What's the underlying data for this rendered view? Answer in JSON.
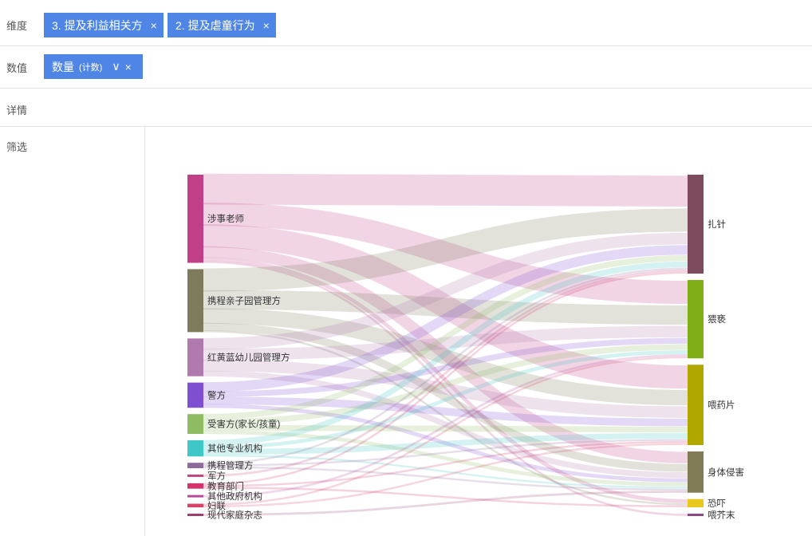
{
  "filters": {
    "dimension_label": "维度",
    "value_label": "数值",
    "details_label": "详情",
    "filter_label": "筛选",
    "dimensions": [
      {
        "label": "3. 提及利益相关方"
      },
      {
        "label": "2. 提及虐童行为"
      }
    ],
    "value_pill": {
      "label": "数量",
      "agg": "(计数)"
    }
  },
  "chart_data": {
    "type": "sankey",
    "sources": [
      {
        "name": "涉事老师",
        "color": "#c13f87"
      },
      {
        "name": "携程亲子园管理方",
        "color": "#7d7b5b"
      },
      {
        "name": "红黄蓝幼儿园管理方",
        "color": "#b07aae"
      },
      {
        "name": "警方",
        "color": "#7f4fd1"
      },
      {
        "name": "受害方(家长/孩童)",
        "color": "#8fbb62"
      },
      {
        "name": "其他专业机构",
        "color": "#3fc6c6"
      },
      {
        "name": "携程管理方",
        "color": "#8c6a9b"
      },
      {
        "name": "军方",
        "color": "#c2457c"
      },
      {
        "name": "教育部门",
        "color": "#d2336b"
      },
      {
        "name": "其他政府机构",
        "color": "#b54c9a"
      },
      {
        "name": "妇联",
        "color": "#d84267"
      },
      {
        "name": "现代家庭杂志",
        "color": "#9a3f6e"
      }
    ],
    "targets": [
      {
        "name": "扎针",
        "color": "#7e4a5e"
      },
      {
        "name": "猥亵",
        "color": "#7fae16"
      },
      {
        "name": "喂药片",
        "color": "#b0a800"
      },
      {
        "name": "身体侵害",
        "color": "#807b55"
      },
      {
        "name": "恐吓",
        "color": "#e8c81c"
      },
      {
        "name": "喂芥末",
        "color": "#8c4a8a"
      }
    ],
    "links": [
      {
        "s": 0,
        "t": 0,
        "v": 16
      },
      {
        "s": 0,
        "t": 1,
        "v": 12
      },
      {
        "s": 0,
        "t": 2,
        "v": 12
      },
      {
        "s": 0,
        "t": 3,
        "v": 6
      },
      {
        "s": 0,
        "t": 4,
        "v": 2
      },
      {
        "s": 0,
        "t": 5,
        "v": 1
      },
      {
        "s": 1,
        "t": 0,
        "v": 12
      },
      {
        "s": 1,
        "t": 1,
        "v": 10
      },
      {
        "s": 1,
        "t": 2,
        "v": 8
      },
      {
        "s": 1,
        "t": 3,
        "v": 4
      },
      {
        "s": 1,
        "t": 4,
        "v": 1
      },
      {
        "s": 2,
        "t": 0,
        "v": 6
      },
      {
        "s": 2,
        "t": 1,
        "v": 6
      },
      {
        "s": 2,
        "t": 2,
        "v": 6
      },
      {
        "s": 2,
        "t": 3,
        "v": 3
      },
      {
        "s": 3,
        "t": 0,
        "v": 5
      },
      {
        "s": 3,
        "t": 1,
        "v": 3
      },
      {
        "s": 3,
        "t": 2,
        "v": 4
      },
      {
        "s": 3,
        "t": 3,
        "v": 2
      },
      {
        "s": 4,
        "t": 0,
        "v": 3
      },
      {
        "s": 4,
        "t": 1,
        "v": 3
      },
      {
        "s": 4,
        "t": 2,
        "v": 3
      },
      {
        "s": 4,
        "t": 3,
        "v": 2
      },
      {
        "s": 5,
        "t": 0,
        "v": 3
      },
      {
        "s": 5,
        "t": 1,
        "v": 2
      },
      {
        "s": 5,
        "t": 2,
        "v": 3
      },
      {
        "s": 5,
        "t": 3,
        "v": 1
      },
      {
        "s": 6,
        "t": 0,
        "v": 1
      },
      {
        "s": 6,
        "t": 2,
        "v": 1
      },
      {
        "s": 6,
        "t": 3,
        "v": 1
      },
      {
        "s": 7,
        "t": 0,
        "v": 1
      },
      {
        "s": 8,
        "t": 0,
        "v": 1
      },
      {
        "s": 8,
        "t": 2,
        "v": 1
      },
      {
        "s": 8,
        "t": 4,
        "v": 1
      },
      {
        "s": 9,
        "t": 1,
        "v": 1
      },
      {
        "s": 10,
        "t": 1,
        "v": 1
      },
      {
        "s": 10,
        "t": 2,
        "v": 1
      },
      {
        "s": 11,
        "t": 3,
        "v": 1
      }
    ]
  }
}
